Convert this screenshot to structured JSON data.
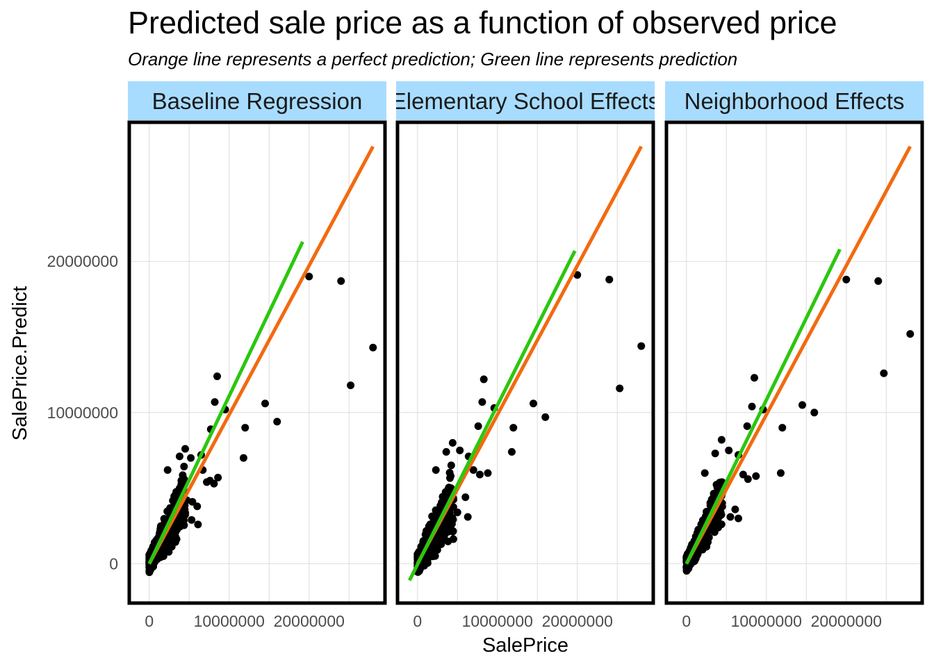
{
  "title": "Predicted sale price as a function of observed price",
  "subtitle": "Orange line represents a perfect prediction; Green line represents prediction",
  "colors": {
    "points": "#000000",
    "perfect_line": "#f26a10",
    "prediction_line": "#2bc70f",
    "strip_fill": "#a7dcff",
    "panel_border": "#000000",
    "grid": "#dcdcdc"
  },
  "chart_data": {
    "type": "scatter",
    "xlabel": "SalePrice",
    "ylabel": "SalePrice.Predict",
    "grid": true,
    "x_ticks": [
      0,
      10000000,
      20000000
    ],
    "x_tick_labels": [
      "0",
      "10000000",
      "20000000"
    ],
    "y_ticks": [
      0,
      10000000,
      20000000
    ],
    "y_tick_labels": [
      "0",
      "10000000",
      "20000000"
    ],
    "panels": [
      {
        "name": "Baseline Regression",
        "xlim": [
          -2500000,
          29500000
        ],
        "ylim": [
          -2600000,
          29200000
        ],
        "perfect_line": [
          [
            0,
            0
          ],
          [
            28000000,
            27600000
          ]
        ],
        "prediction_line": [
          [
            0,
            0
          ],
          [
            19200000,
            21300000
          ]
        ],
        "outliers": [
          [
            20000000,
            19000000
          ],
          [
            24000000,
            18700000
          ],
          [
            28000000,
            14300000
          ],
          [
            25200000,
            11800000
          ],
          [
            14500000,
            10600000
          ],
          [
            12000000,
            9000000
          ],
          [
            16000000,
            9400000
          ],
          [
            11800000,
            7000000
          ],
          [
            8500000,
            12400000
          ],
          [
            8200000,
            10700000
          ],
          [
            9500000,
            10200000
          ],
          [
            7700000,
            8900000
          ],
          [
            6500000,
            7200000
          ],
          [
            3800000,
            7100000
          ],
          [
            5200000,
            7000000
          ],
          [
            4500000,
            7600000
          ],
          [
            2300000,
            6200000
          ],
          [
            6700000,
            6200000
          ],
          [
            7200000,
            5400000
          ],
          [
            8100000,
            5300000
          ],
          [
            8600000,
            5700000
          ],
          [
            7600000,
            5500000
          ],
          [
            5400000,
            4100000
          ],
          [
            6000000,
            3800000
          ],
          [
            6100000,
            2600000
          ],
          [
            5300000,
            2900000
          ],
          [
            4000000,
            5200000
          ],
          [
            4700000,
            4200000
          ]
        ],
        "cloud": [
          [
            0,
            4500000,
            0.95,
            1.3,
            0.4
          ]
        ],
        "n_cloud": 340,
        "seed": 11
      },
      {
        "name": "Elementary School Effects",
        "xlim": [
          -2500000,
          29500000
        ],
        "ylim": [
          -2600000,
          29200000
        ],
        "perfect_line": [
          [
            0,
            0
          ],
          [
            28000000,
            27600000
          ]
        ],
        "prediction_line": [
          [
            -1000000,
            -1100000
          ],
          [
            19700000,
            20700000
          ]
        ],
        "outliers": [
          [
            20000000,
            19100000
          ],
          [
            24000000,
            18800000
          ],
          [
            28000000,
            14400000
          ],
          [
            25300000,
            11600000
          ],
          [
            14500000,
            10600000
          ],
          [
            12000000,
            9000000
          ],
          [
            16000000,
            9700000
          ],
          [
            11800000,
            7400000
          ],
          [
            8300000,
            12200000
          ],
          [
            8100000,
            10700000
          ],
          [
            9600000,
            10300000
          ],
          [
            7600000,
            9100000
          ],
          [
            6400000,
            7100000
          ],
          [
            3600000,
            7400000
          ],
          [
            5300000,
            7500000
          ],
          [
            4400000,
            8000000
          ],
          [
            2300000,
            6200000
          ],
          [
            7000000,
            6200000
          ],
          [
            7800000,
            5900000
          ],
          [
            8800000,
            6000000
          ],
          [
            6000000,
            4400000
          ],
          [
            6300000,
            3100000
          ],
          [
            5000000,
            3400000
          ],
          [
            4200000,
            5000000
          ]
        ],
        "cloud": [
          [
            0,
            4500000,
            0.95,
            1.4,
            0.5
          ]
        ],
        "n_cloud": 340,
        "seed": 23
      },
      {
        "name": "Neighborhood Effects",
        "xlim": [
          -2500000,
          29500000
        ],
        "ylim": [
          -2600000,
          29200000
        ],
        "perfect_line": [
          [
            0,
            0
          ],
          [
            28000000,
            27600000
          ]
        ],
        "prediction_line": [
          [
            0,
            0
          ],
          [
            19200000,
            20800000
          ]
        ],
        "outliers": [
          [
            20000000,
            18800000
          ],
          [
            24000000,
            18700000
          ],
          [
            28000000,
            15200000
          ],
          [
            24700000,
            12600000
          ],
          [
            14500000,
            10500000
          ],
          [
            12000000,
            9000000
          ],
          [
            16000000,
            10000000
          ],
          [
            11800000,
            6000000
          ],
          [
            8500000,
            12300000
          ],
          [
            8200000,
            10400000
          ],
          [
            9600000,
            10200000
          ],
          [
            7600000,
            9100000
          ],
          [
            6500000,
            7200000
          ],
          [
            3600000,
            7300000
          ],
          [
            5300000,
            7500000
          ],
          [
            4400000,
            8200000
          ],
          [
            2300000,
            6000000
          ],
          [
            7100000,
            5900000
          ],
          [
            7700000,
            5600000
          ],
          [
            8700000,
            5800000
          ],
          [
            6100000,
            3600000
          ],
          [
            6500000,
            3000000
          ],
          [
            5500000,
            3100000
          ],
          [
            4300000,
            5000000
          ]
        ],
        "cloud": [
          [
            0,
            4500000,
            0.95,
            1.1,
            0.3
          ]
        ],
        "n_cloud": 340,
        "seed": 37
      }
    ]
  }
}
